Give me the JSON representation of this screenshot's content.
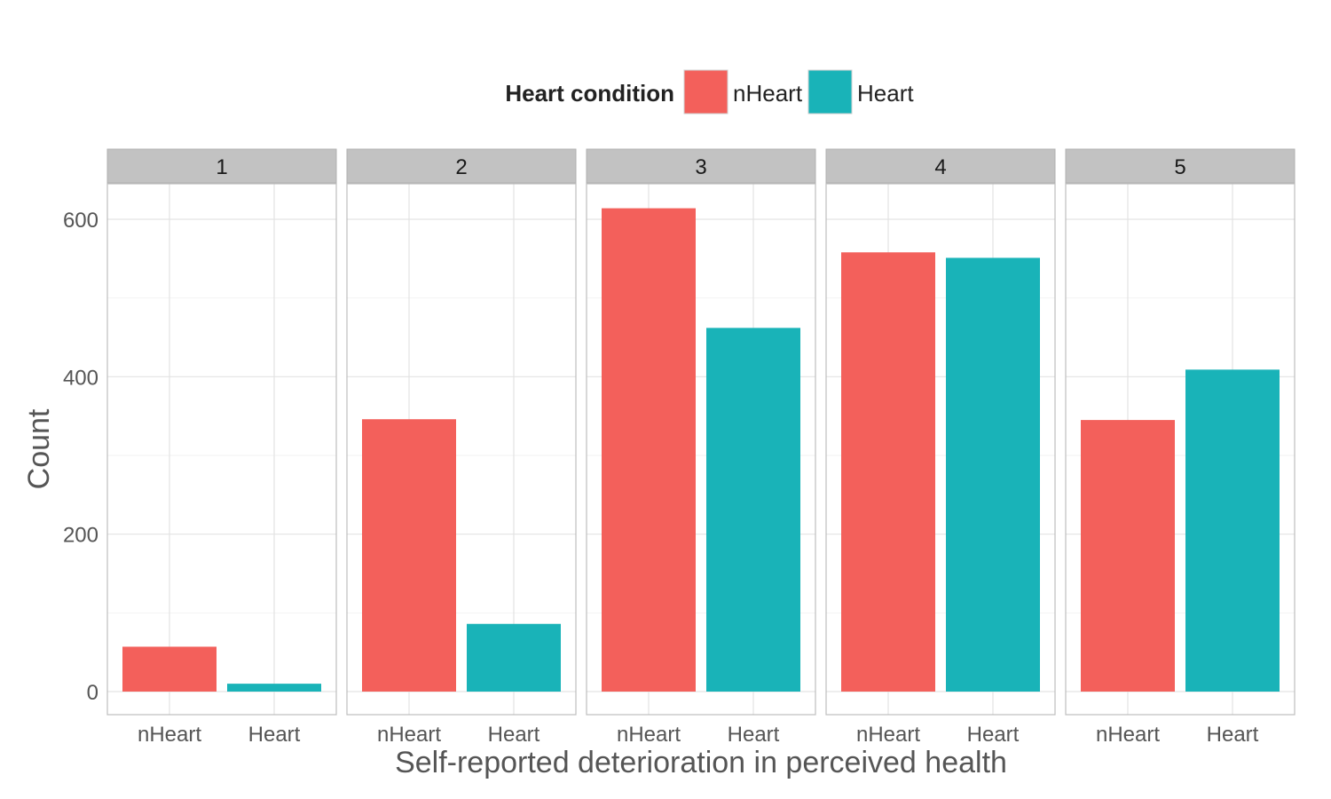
{
  "chart_data": {
    "type": "bar",
    "title": "",
    "xlabel": "Self-reported deterioration in perceived health",
    "ylabel": "Count",
    "ylim": [
      0,
      650
    ],
    "yticks": [
      0,
      200,
      400,
      600
    ],
    "legend": {
      "title": "Heart condition",
      "position": "top",
      "entries": [
        "nHeart",
        "Heart"
      ]
    },
    "categories": [
      "nHeart",
      "Heart"
    ],
    "colors": {
      "nHeart": "#F3605B",
      "Heart": "#19B3B8"
    },
    "grid": true,
    "facets": [
      {
        "label": "1",
        "values": [
          57,
          10
        ]
      },
      {
        "label": "2",
        "values": [
          346,
          86
        ]
      },
      {
        "label": "3",
        "values": [
          614,
          462
        ]
      },
      {
        "label": "4",
        "values": [
          558,
          551
        ]
      },
      {
        "label": "5",
        "values": [
          345,
          409
        ]
      }
    ]
  }
}
